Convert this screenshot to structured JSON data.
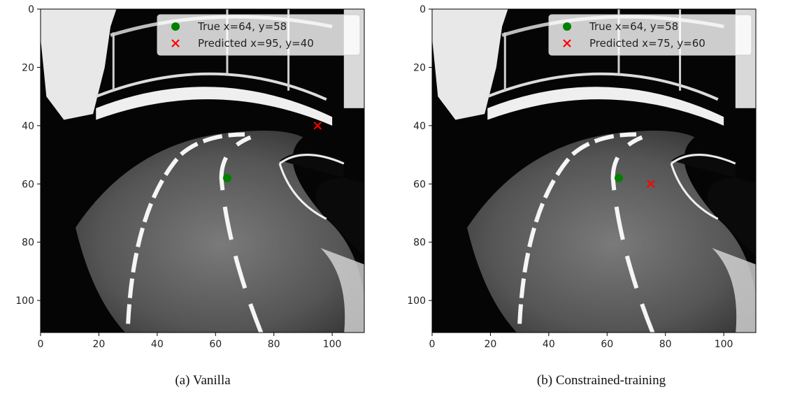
{
  "chart_data": [
    {
      "type": "scatter",
      "background": "grayscale road image from an onboard camera (track with lane markings)",
      "xlim": [
        0,
        111
      ],
      "ylim": [
        111,
        0
      ],
      "x_ticks": [
        0,
        20,
        40,
        60,
        80,
        100
      ],
      "y_ticks": [
        0,
        20,
        40,
        60,
        80,
        100
      ],
      "series": [
        {
          "name": "True x=64, y=58",
          "marker": "circle",
          "color": "#008000",
          "x": [
            64
          ],
          "y": [
            58
          ]
        },
        {
          "name": "Predicted x=95, y=40",
          "marker": "x",
          "color": "#ff0000",
          "x": [
            95
          ],
          "y": [
            40
          ]
        }
      ],
      "legend": "top-right",
      "caption": "(a) Vanilla"
    },
    {
      "type": "scatter",
      "background": "grayscale road image from an onboard camera (track with lane markings)",
      "xlim": [
        0,
        111
      ],
      "ylim": [
        111,
        0
      ],
      "x_ticks": [
        0,
        20,
        40,
        60,
        80,
        100
      ],
      "y_ticks": [
        0,
        20,
        40,
        60,
        80,
        100
      ],
      "series": [
        {
          "name": "True x=64, y=58",
          "marker": "circle",
          "color": "#008000",
          "x": [
            64
          ],
          "y": [
            58
          ]
        },
        {
          "name": "Predicted x=75, y=60",
          "marker": "x",
          "color": "#ff0000",
          "x": [
            75
          ],
          "y": [
            60
          ]
        }
      ],
      "legend": "top-right",
      "caption": "(b) Constrained-training"
    }
  ]
}
